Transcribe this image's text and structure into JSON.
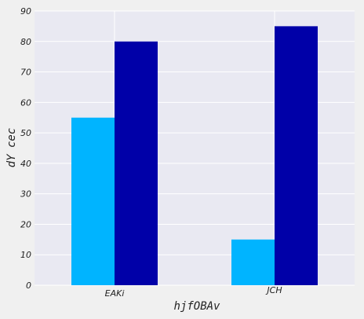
{
  "chart_data": {
    "type": "bar",
    "title": "",
    "xlabel": "hjfOBAv",
    "ylabel": "dY cec",
    "categories": [
      "EAKi",
      "JCH"
    ],
    "series": [
      {
        "values": [
          55,
          15
        ],
        "color": "#00b4ff"
      },
      {
        "values": [
          80,
          85
        ],
        "color": "#0000a8"
      }
    ],
    "ylim": [
      0,
      90
    ],
    "yticks": [
      0,
      10,
      20,
      30,
      40,
      50,
      60,
      70,
      80,
      90
    ],
    "grid": true,
    "legend": "none"
  }
}
